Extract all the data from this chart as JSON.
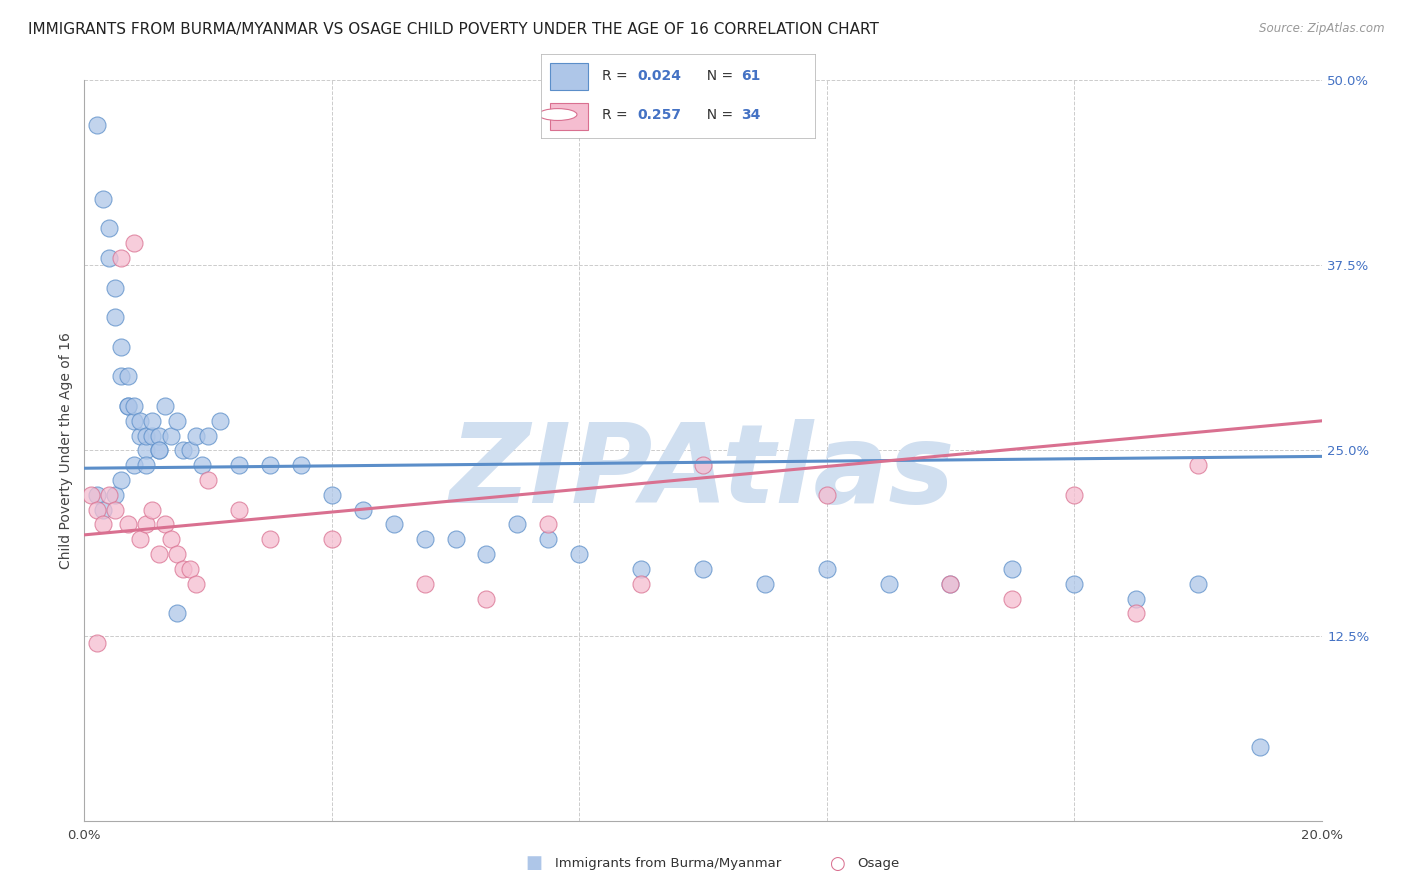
{
  "title": "IMMIGRANTS FROM BURMA/MYANMAR VS OSAGE CHILD POVERTY UNDER THE AGE OF 16 CORRELATION CHART",
  "source": "Source: ZipAtlas.com",
  "ylabel": "Child Poverty Under the Age of 16",
  "xlim": [
    0.0,
    0.2
  ],
  "ylim": [
    0.0,
    0.5
  ],
  "xtick_vals": [
    0.0,
    0.04,
    0.08,
    0.12,
    0.16,
    0.2
  ],
  "xticklabels": [
    "0.0%",
    "",
    "",
    "",
    "",
    "20.0%"
  ],
  "ytick_vals": [
    0.0,
    0.125,
    0.25,
    0.375,
    0.5
  ],
  "ytick_labels_right": [
    "",
    "12.5%",
    "25.0%",
    "37.5%",
    "50.0%"
  ],
  "legend_line1": "R = 0.024   N = 61",
  "legend_line2": "R = 0.257   N = 34",
  "blue_fill": "#aec6e8",
  "blue_edge": "#5b8ec9",
  "pink_fill": "#f5bdd0",
  "pink_edge": "#d97090",
  "legend_text_color": "#4472c4",
  "right_tick_color": "#4472c4",
  "watermark": "ZIPAtlas",
  "watermark_color": "#d0dff0",
  "blue_scatter_x": [
    0.002,
    0.003,
    0.004,
    0.004,
    0.005,
    0.005,
    0.006,
    0.006,
    0.007,
    0.007,
    0.007,
    0.008,
    0.008,
    0.009,
    0.009,
    0.01,
    0.01,
    0.011,
    0.011,
    0.012,
    0.012,
    0.013,
    0.014,
    0.015,
    0.016,
    0.017,
    0.018,
    0.019,
    0.02,
    0.022,
    0.025,
    0.03,
    0.035,
    0.04,
    0.045,
    0.05,
    0.055,
    0.06,
    0.065,
    0.07,
    0.075,
    0.08,
    0.09,
    0.1,
    0.11,
    0.12,
    0.13,
    0.14,
    0.15,
    0.16,
    0.17,
    0.18,
    0.19,
    0.002,
    0.003,
    0.005,
    0.006,
    0.008,
    0.01,
    0.012,
    0.015
  ],
  "blue_scatter_y": [
    0.47,
    0.42,
    0.4,
    0.38,
    0.36,
    0.34,
    0.32,
    0.3,
    0.28,
    0.28,
    0.3,
    0.27,
    0.28,
    0.26,
    0.27,
    0.25,
    0.26,
    0.26,
    0.27,
    0.25,
    0.26,
    0.28,
    0.26,
    0.27,
    0.25,
    0.25,
    0.26,
    0.24,
    0.26,
    0.27,
    0.24,
    0.24,
    0.24,
    0.22,
    0.21,
    0.2,
    0.19,
    0.19,
    0.18,
    0.2,
    0.19,
    0.18,
    0.17,
    0.17,
    0.16,
    0.17,
    0.16,
    0.16,
    0.17,
    0.16,
    0.15,
    0.16,
    0.05,
    0.22,
    0.21,
    0.22,
    0.23,
    0.24,
    0.24,
    0.25,
    0.14
  ],
  "pink_scatter_x": [
    0.001,
    0.002,
    0.003,
    0.004,
    0.005,
    0.006,
    0.007,
    0.008,
    0.009,
    0.01,
    0.011,
    0.012,
    0.013,
    0.014,
    0.015,
    0.016,
    0.017,
    0.018,
    0.02,
    0.025,
    0.03,
    0.04,
    0.055,
    0.065,
    0.075,
    0.09,
    0.1,
    0.12,
    0.14,
    0.15,
    0.16,
    0.17,
    0.18,
    0.002
  ],
  "pink_scatter_y": [
    0.22,
    0.21,
    0.2,
    0.22,
    0.21,
    0.38,
    0.2,
    0.39,
    0.19,
    0.2,
    0.21,
    0.18,
    0.2,
    0.19,
    0.18,
    0.17,
    0.17,
    0.16,
    0.23,
    0.21,
    0.19,
    0.19,
    0.16,
    0.15,
    0.2,
    0.16,
    0.24,
    0.22,
    0.16,
    0.15,
    0.22,
    0.14,
    0.24,
    0.12
  ],
  "blue_trend_y": [
    0.238,
    0.246
  ],
  "pink_trend_y": [
    0.193,
    0.27
  ],
  "background_color": "#ffffff",
  "grid_color": "#cccccc",
  "title_fontsize": 11,
  "axis_label_fontsize": 10,
  "tick_fontsize": 9.5
}
